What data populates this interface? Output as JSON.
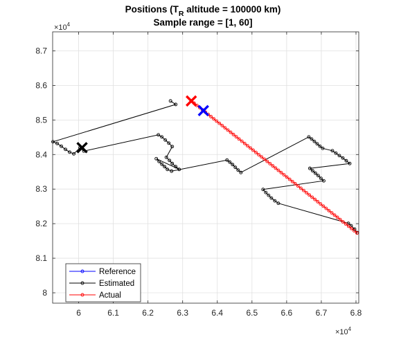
{
  "chart_data": {
    "type": "line",
    "title_main": "Positions (T",
    "title_sub": "R",
    "title_rest": " altitude = 100000 km)",
    "subtitle": "Sample range = [1, 60]",
    "x_exponent_base": "×10",
    "x_exponent_power": "4",
    "y_exponent_base": "×10",
    "y_exponent_power": "4",
    "xlim": [
      5.925,
      6.808
    ],
    "ylim": [
      7.97,
      8.755
    ],
    "x_ticks": [
      6.0,
      6.1,
      6.2,
      6.3,
      6.4,
      6.5,
      6.6,
      6.7,
      6.8
    ],
    "x_tick_labels": [
      "6",
      "6.1",
      "6.2",
      "6.3",
      "6.4",
      "6.5",
      "6.6",
      "6.7",
      "6.8"
    ],
    "y_ticks": [
      8.0,
      8.1,
      8.2,
      8.3,
      8.4,
      8.5,
      8.6,
      8.7
    ],
    "y_tick_labels": [
      "8",
      "8.1",
      "8.2",
      "8.3",
      "8.4",
      "8.5",
      "8.6",
      "8.7"
    ],
    "grid": true,
    "legend_position": "bottom-left",
    "series": [
      {
        "name": "Reference",
        "color": "#0000ff",
        "marker": "circle",
        "points": []
      },
      {
        "name": "Estimated",
        "color": "#000000",
        "marker": "circle",
        "points": [
          [
            6.265,
            8.555
          ],
          [
            6.28,
            8.545
          ],
          [
            5.926,
            8.437
          ],
          [
            5.938,
            8.432
          ],
          [
            5.95,
            8.424
          ],
          [
            5.962,
            8.415
          ],
          [
            5.974,
            8.407
          ],
          [
            5.986,
            8.402
          ],
          [
            6.004,
            8.42
          ],
          [
            6.015,
            8.41
          ],
          [
            6.23,
            8.457
          ],
          [
            6.24,
            8.451
          ],
          [
            6.25,
            8.442
          ],
          [
            6.26,
            8.433
          ],
          [
            6.27,
            8.423
          ],
          [
            6.253,
            8.392
          ],
          [
            6.262,
            8.383
          ],
          [
            6.27,
            8.374
          ],
          [
            6.28,
            8.365
          ],
          [
            6.29,
            8.357
          ],
          [
            6.224,
            8.388
          ],
          [
            6.232,
            8.38
          ],
          [
            6.24,
            8.372
          ],
          [
            6.248,
            8.365
          ],
          [
            6.256,
            8.357
          ],
          [
            6.268,
            8.352
          ],
          [
            6.428,
            8.384
          ],
          [
            6.436,
            8.378
          ],
          [
            6.444,
            8.371
          ],
          [
            6.452,
            8.363
          ],
          [
            6.46,
            8.355
          ],
          [
            6.468,
            8.348
          ],
          [
            6.664,
            8.451
          ],
          [
            6.672,
            8.445
          ],
          [
            6.68,
            8.438
          ],
          [
            6.688,
            8.431
          ],
          [
            6.696,
            8.424
          ],
          [
            6.704,
            8.418
          ],
          [
            6.732,
            8.411
          ],
          [
            6.742,
            8.404
          ],
          [
            6.752,
            8.397
          ],
          [
            6.762,
            8.39
          ],
          [
            6.772,
            8.382
          ],
          [
            6.782,
            8.374
          ],
          [
            6.667,
            8.36
          ],
          [
            6.675,
            8.353
          ],
          [
            6.683,
            8.346
          ],
          [
            6.691,
            8.339
          ],
          [
            6.699,
            8.331
          ],
          [
            6.707,
            8.324
          ],
          [
            6.532,
            8.299
          ],
          [
            6.54,
            8.29
          ],
          [
            6.548,
            8.282
          ],
          [
            6.556,
            8.274
          ],
          [
            6.566,
            8.266
          ],
          [
            6.576,
            8.259
          ],
          [
            6.778,
            8.201
          ],
          [
            6.786,
            8.194
          ],
          [
            6.796,
            8.184
          ],
          [
            6.804,
            8.174
          ]
        ]
      },
      {
        "name": "Actual",
        "color": "#ff0000",
        "marker": "circle",
        "start": [
          6.325,
          8.555
        ],
        "end": [
          6.803,
          8.173
        ],
        "count": 60
      }
    ],
    "markers": [
      {
        "name": "estimated-start",
        "color": "#000000",
        "x": 6.01,
        "y": 8.42
      },
      {
        "name": "actual-start",
        "color": "#ff0000",
        "x": 6.325,
        "y": 8.555
      },
      {
        "name": "reference-start",
        "color": "#0000ff",
        "x": 6.36,
        "y": 8.527
      }
    ]
  }
}
